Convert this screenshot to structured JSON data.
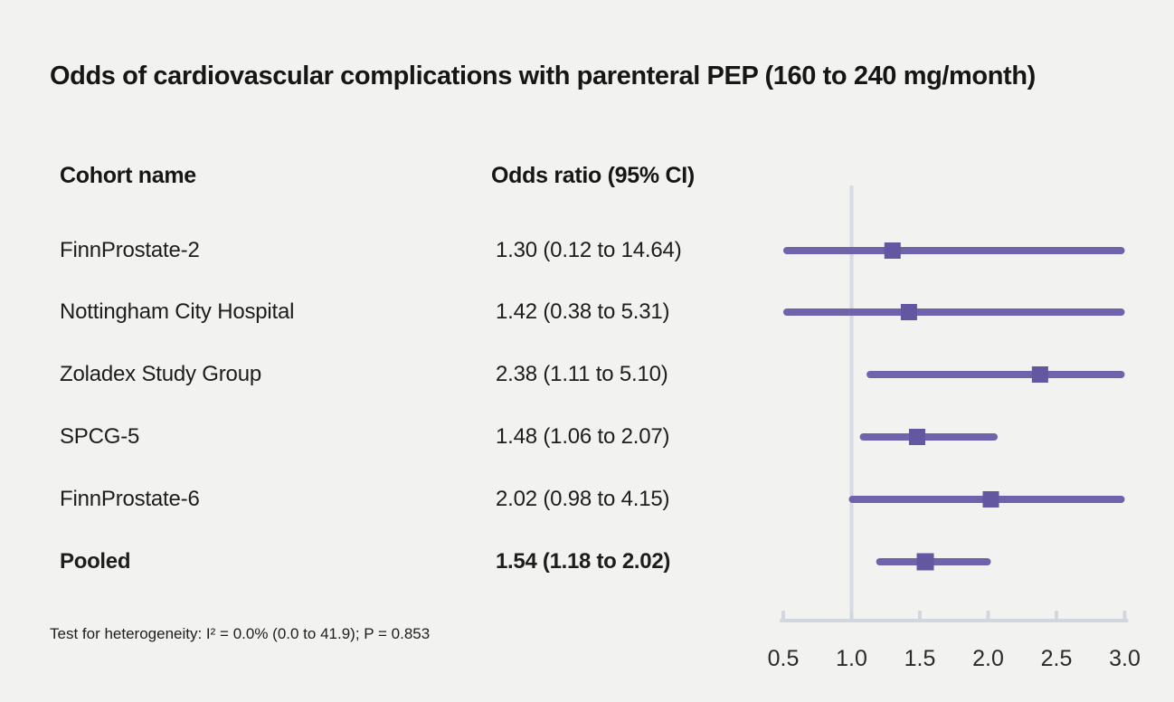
{
  "title": "Odds of cardiovascular complications with parenteral PEP (160 to 240 mg/month)",
  "table": {
    "cohort_header": "Cohort name",
    "or_header": "Odds ratio (95% CI)",
    "rows": [
      {
        "name": "FinnProstate-2",
        "or_text": "1.30 (0.12 to 14.64)",
        "bold": false
      },
      {
        "name": "Nottingham City Hospital",
        "or_text": "1.42 (0.38 to 5.31)",
        "bold": false
      },
      {
        "name": "Zoladex Study Group",
        "or_text": "2.38 (1.11 to 5.10)",
        "bold": false
      },
      {
        "name": "SPCG-5",
        "or_text": "1.48 (1.06 to 2.07)",
        "bold": false
      },
      {
        "name": "FinnProstate-6",
        "or_text": "2.02 (0.98 to 4.15)",
        "bold": false
      },
      {
        "name": "Pooled",
        "or_text": "1.54 (1.18 to 2.02)",
        "bold": true
      }
    ]
  },
  "footnote": "Test for heterogeneity: I² = 0.0% (0.0 to 41.9); P = 0.853",
  "chart_data": {
    "type": "forest",
    "title": "Odds of cardiovascular complications with parenteral PEP (160 to 240 mg/month)",
    "x_ticks": [
      0.5,
      1.0,
      1.5,
      2.0,
      2.5,
      3.0
    ],
    "xlim": [
      0.5,
      3.0
    ],
    "reference_line": 1.0,
    "grid": false,
    "series": [
      {
        "name": "FinnProstate-2",
        "or": 1.3,
        "ci_low": 0.12,
        "ci_high": 14.64,
        "pooled": false
      },
      {
        "name": "Nottingham City Hospital",
        "or": 1.42,
        "ci_low": 0.38,
        "ci_high": 5.31,
        "pooled": false
      },
      {
        "name": "Zoladex Study Group",
        "or": 2.38,
        "ci_low": 1.11,
        "ci_high": 5.1,
        "pooled": false
      },
      {
        "name": "SPCG-5",
        "or": 1.48,
        "ci_low": 1.06,
        "ci_high": 2.07,
        "pooled": false
      },
      {
        "name": "FinnProstate-6",
        "or": 2.02,
        "ci_low": 0.98,
        "ci_high": 4.15,
        "pooled": false
      },
      {
        "name": "Pooled",
        "or": 1.54,
        "ci_low": 1.18,
        "ci_high": 2.02,
        "pooled": true
      }
    ],
    "colors": {
      "marker": "#6457a1",
      "ci_line": "#6f63ac",
      "reference_line": "#d6dae2",
      "axis": "#d2d6de",
      "background": "#f2f2f0"
    }
  }
}
